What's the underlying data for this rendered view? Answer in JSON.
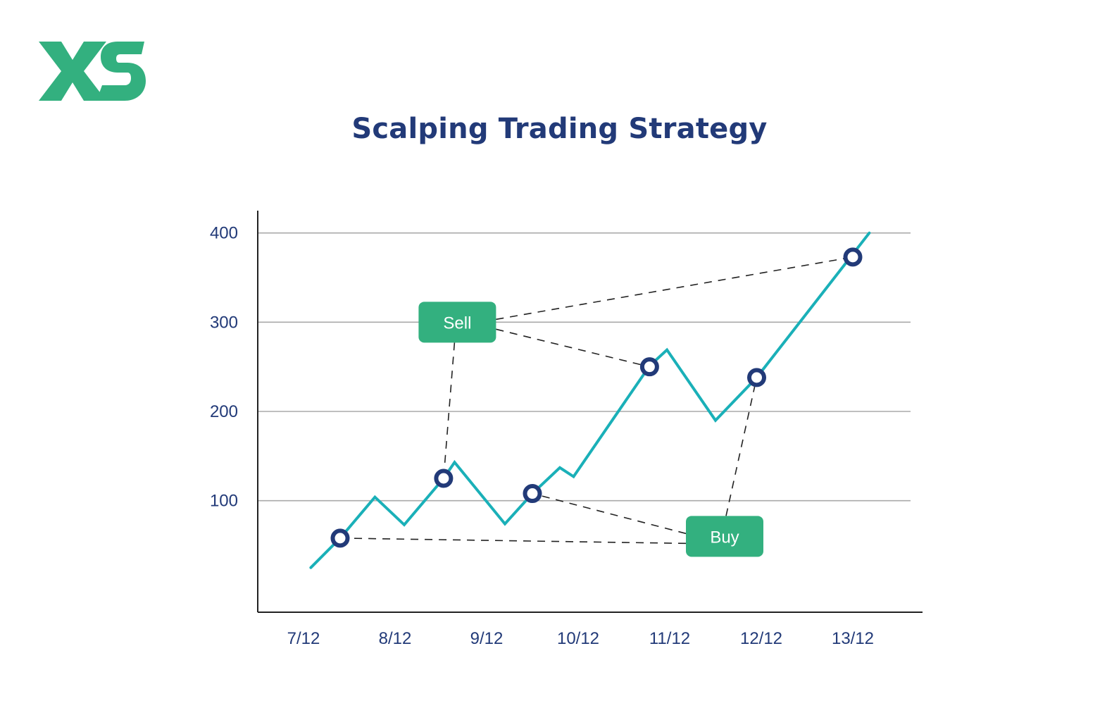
{
  "logo": {
    "text": "XS",
    "color": "#33b07f"
  },
  "chart_data": {
    "type": "line",
    "title": "Scalping Trading Strategy",
    "xlabel": "",
    "ylabel": "",
    "x_categories": [
      "7/12",
      "8/12",
      "9/12",
      "10/12",
      "11/12",
      "12/12",
      "13/12"
    ],
    "y_ticks": [
      100,
      200,
      300,
      400
    ],
    "ylim": [
      -25,
      425
    ],
    "grid": "horizontal",
    "line_color": "#1ab0b8",
    "series": [
      {
        "values": [
          {
            "x": 0.08,
            "y": 25
          },
          {
            "x": 0.4,
            "y": 58
          },
          {
            "x": 0.78,
            "y": 104
          },
          {
            "x": 1.1,
            "y": 73
          },
          {
            "x": 1.53,
            "y": 125
          },
          {
            "x": 1.65,
            "y": 143
          },
          {
            "x": 2.2,
            "y": 74
          },
          {
            "x": 2.5,
            "y": 108
          },
          {
            "x": 2.8,
            "y": 137
          },
          {
            "x": 2.95,
            "y": 127
          },
          {
            "x": 3.78,
            "y": 251
          },
          {
            "x": 3.97,
            "y": 269
          },
          {
            "x": 4.5,
            "y": 190
          },
          {
            "x": 4.95,
            "y": 238
          },
          {
            "x": 6.18,
            "y": 400
          }
        ]
      }
    ],
    "signal_points": [
      {
        "x": 0.4,
        "y": 58,
        "signal": "Buy"
      },
      {
        "x": 1.53,
        "y": 125,
        "signal": "Sell"
      },
      {
        "x": 2.5,
        "y": 108,
        "signal": "Buy"
      },
      {
        "x": 3.78,
        "y": 250,
        "signal": "Sell"
      },
      {
        "x": 4.95,
        "y": 238,
        "signal": "Buy"
      },
      {
        "x": 6.0,
        "y": 373,
        "signal": "Sell"
      }
    ],
    "annotations": [
      {
        "label": "Sell",
        "x": 1.68,
        "y": 300,
        "color": "#33b07f"
      },
      {
        "label": "Buy",
        "x": 4.6,
        "y": 60,
        "color": "#33b07f"
      }
    ],
    "marker_color": "#223a78",
    "axis_color": "#222222",
    "grid_color": "#aaaaaa"
  }
}
